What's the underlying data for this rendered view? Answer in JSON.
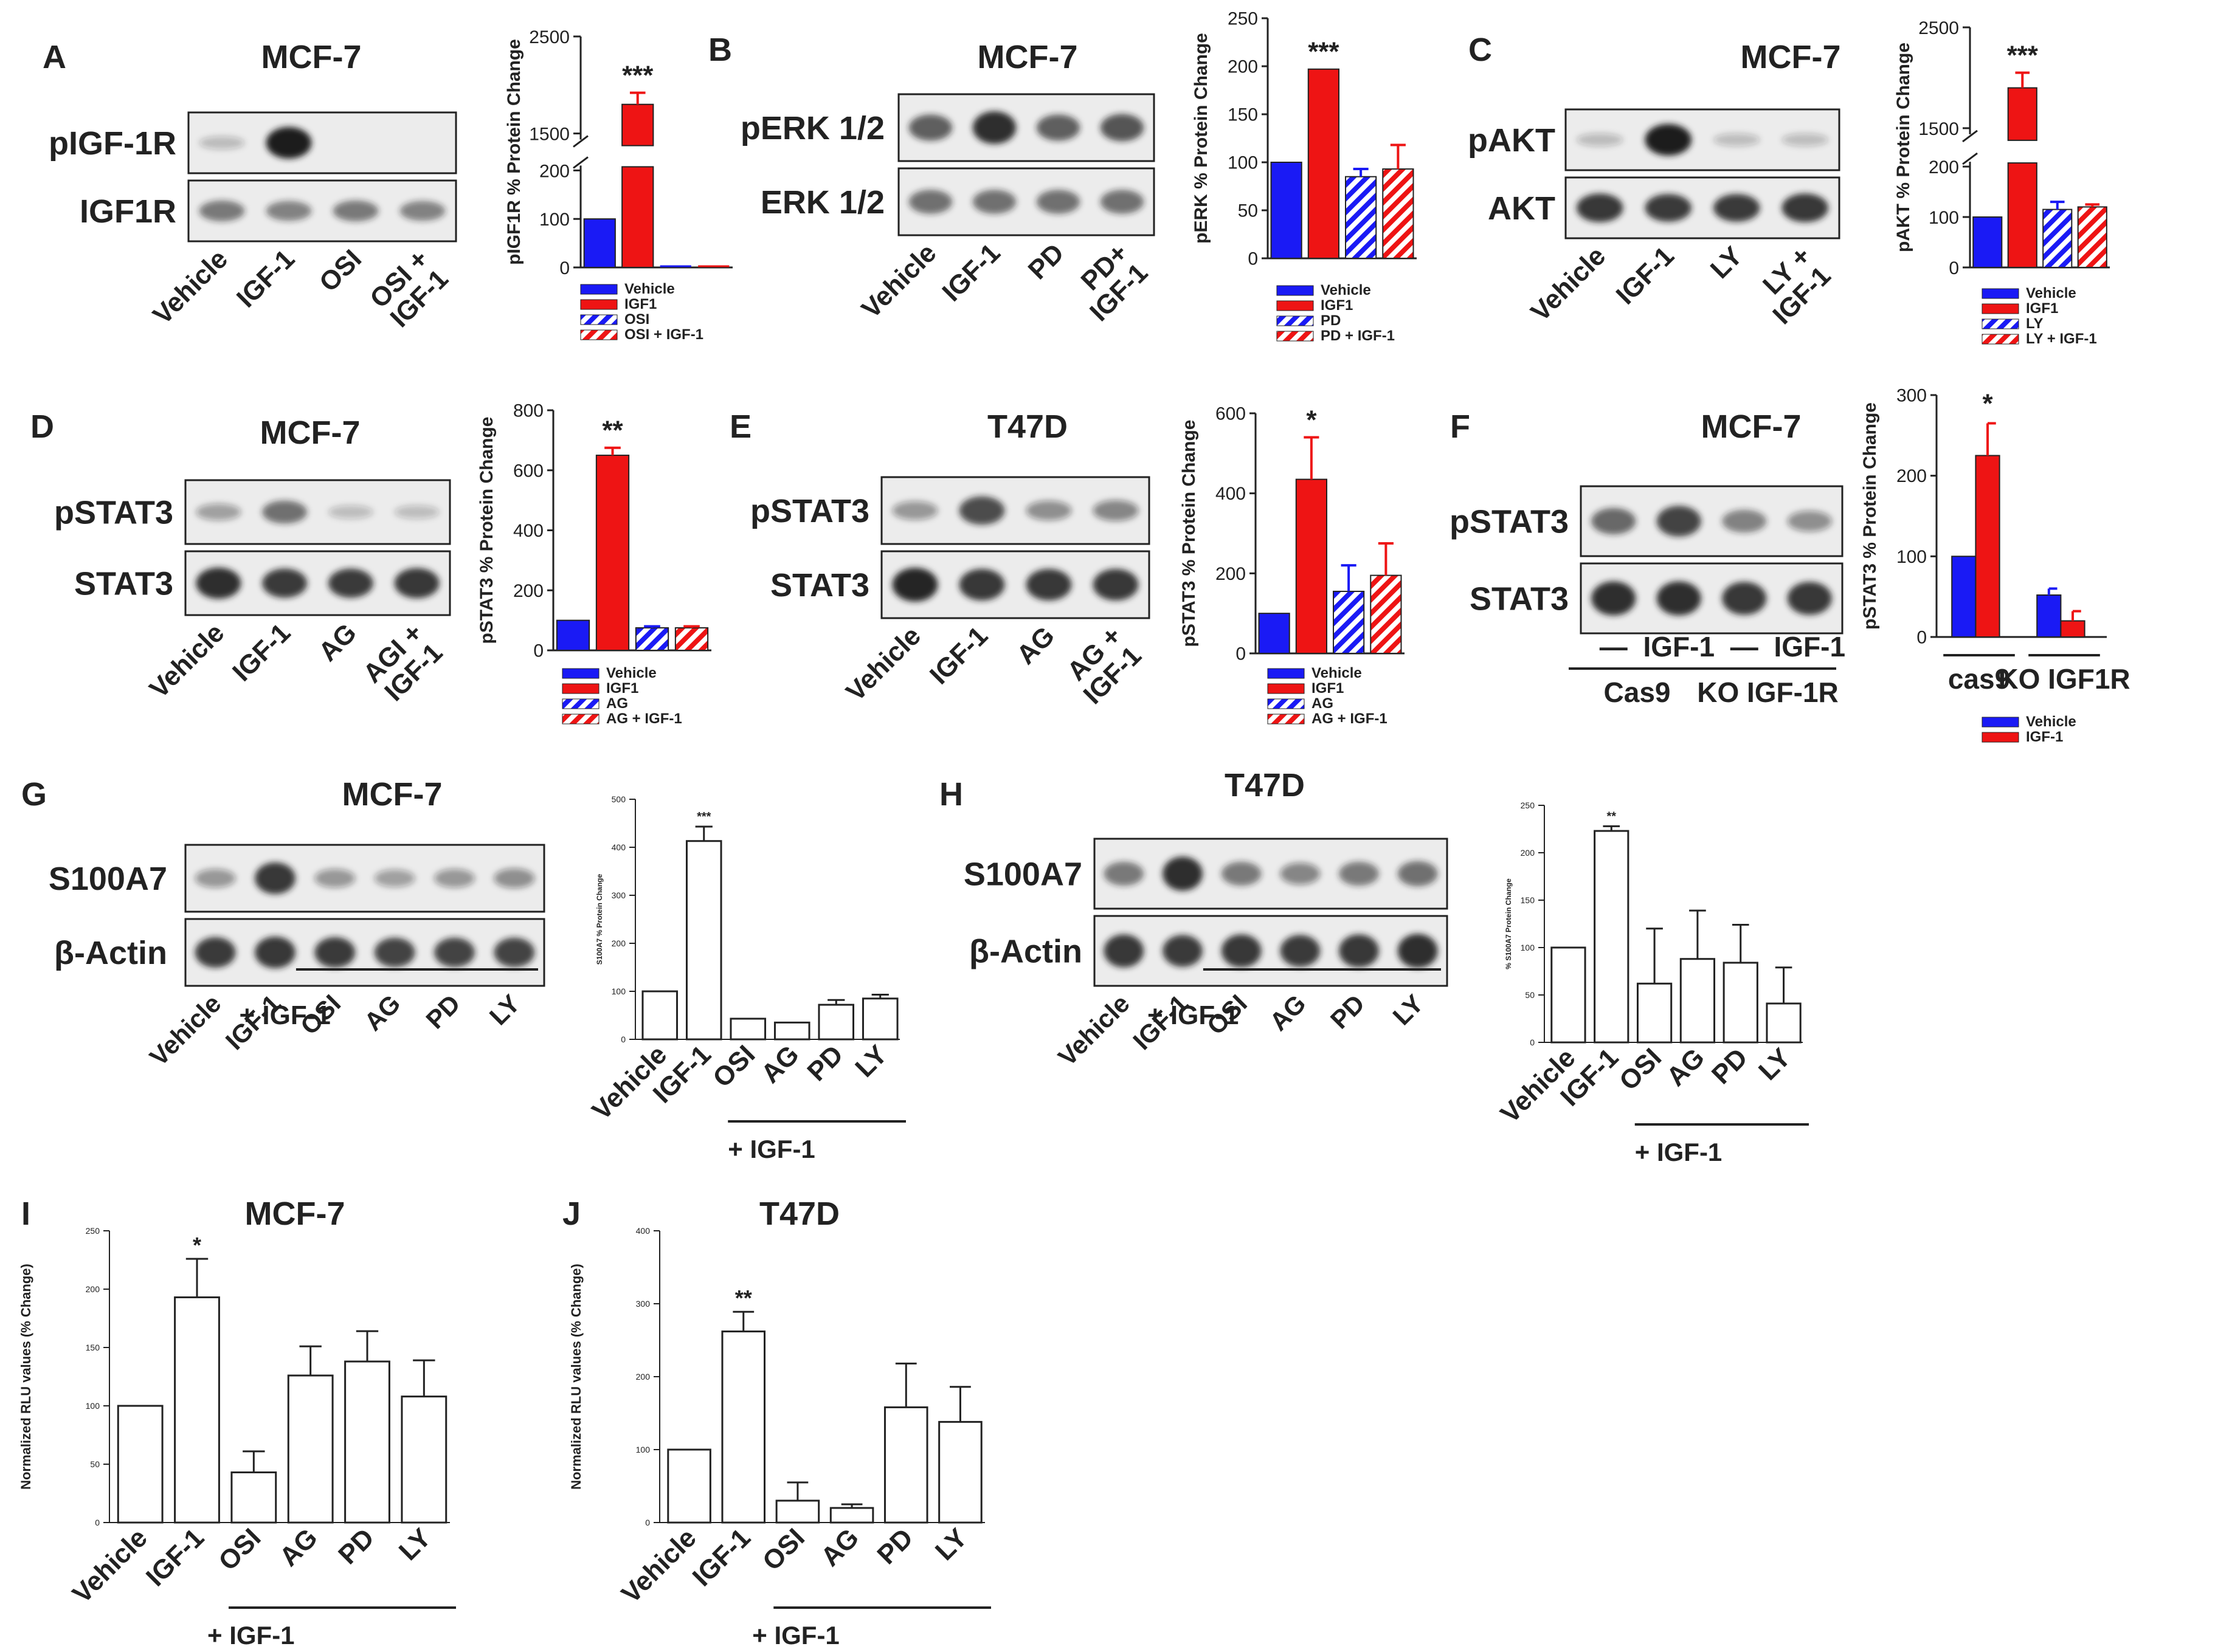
{
  "colors": {
    "blue": "#1a1af5",
    "red": "#ee1414",
    "outline": "#222222",
    "blot_bg": "#ececec",
    "band": "#1c1c1c"
  },
  "panels": [
    {
      "id": "A",
      "letter": "A",
      "title": "MCF-7",
      "blot": {
        "rows": [
          {
            "label": "pIGF-1R",
            "bands": [
              0.05,
              1.0,
              0,
              0
            ]
          },
          {
            "label": "IGF1R",
            "bands": [
              0.45,
              0.4,
              0.45,
              0.4
            ]
          }
        ],
        "lanes": [
          "Vehicle",
          "IGF-1",
          "OSI",
          "OSI +\nIGF-1"
        ]
      }
    },
    {
      "id": "B",
      "letter": "B",
      "title": "MCF-7",
      "blot": {
        "rows": [
          {
            "label": "pERK 1/2",
            "bands": [
              0.6,
              0.9,
              0.6,
              0.65
            ]
          },
          {
            "label": "ERK 1/2",
            "bands": [
              0.5,
              0.5,
              0.5,
              0.5
            ]
          }
        ],
        "lanes": [
          "Vehicle",
          "IGF-1",
          "PD",
          "PD+\nIGF-1"
        ]
      }
    },
    {
      "id": "C",
      "letter": "C",
      "title": "MCF-7",
      "blot": {
        "rows": [
          {
            "label": "pAKT",
            "bands": [
              0.05,
              1.0,
              0.04,
              0.04
            ]
          },
          {
            "label": "AKT",
            "bands": [
              0.85,
              0.8,
              0.8,
              0.85
            ]
          }
        ],
        "lanes": [
          "Vehicle",
          "IGF-1",
          "LY",
          "LY +\nIGF-1"
        ]
      }
    },
    {
      "id": "D",
      "letter": "D",
      "title": "MCF-7",
      "blot": {
        "rows": [
          {
            "label": "pSTAT3",
            "bands": [
              0.2,
              0.5,
              0.04,
              0.04
            ]
          },
          {
            "label": "STAT3",
            "bands": [
              0.9,
              0.8,
              0.8,
              0.85
            ]
          }
        ],
        "lanes": [
          "Vehicle",
          "IGF-1",
          "AG",
          "AGI +\nIGF-1"
        ]
      }
    },
    {
      "id": "E",
      "letter": "E",
      "title": "T47D",
      "blot": {
        "rows": [
          {
            "label": "pSTAT3",
            "bands": [
              0.25,
              0.7,
              0.3,
              0.35
            ]
          },
          {
            "label": "STAT3",
            "bands": [
              0.95,
              0.85,
              0.85,
              0.85
            ]
          }
        ],
        "lanes": [
          "Vehicle",
          "IGF-1",
          "AG",
          "AG +\nIGF-1"
        ]
      }
    },
    {
      "id": "F",
      "letter": "F",
      "title": "MCF-7",
      "blot": {
        "rows": [
          {
            "label": "pSTAT3",
            "bands": [
              0.55,
              0.75,
              0.4,
              0.3
            ]
          },
          {
            "label": "STAT3",
            "bands": [
              0.9,
              0.9,
              0.85,
              0.85
            ]
          }
        ],
        "lanes": [
          "—",
          "IGF-1",
          "—",
          "IGF-1"
        ],
        "groups": [
          "Cas9",
          "KO IGF-1R"
        ]
      }
    },
    {
      "id": "G",
      "letter": "G",
      "title": "MCF-7",
      "blot": {
        "rows": [
          {
            "label": "S100A7",
            "bands": [
              0.25,
              0.85,
              0.25,
              0.2,
              0.25,
              0.3
            ]
          },
          {
            "label": "β-Actin",
            "bands": [
              0.8,
              0.85,
              0.8,
              0.75,
              0.75,
              0.75
            ]
          }
        ],
        "lanes": [
          "Vehicle",
          "IGF-1",
          "OSI",
          "AG",
          "PD",
          "LY"
        ],
        "underline": "+ IGF-1"
      }
    },
    {
      "id": "H",
      "letter": "H",
      "title": "T47D",
      "blot": {
        "rows": [
          {
            "label": "S100A7",
            "bands": [
              0.45,
              0.9,
              0.45,
              0.35,
              0.45,
              0.5
            ]
          },
          {
            "label": "β-Actin",
            "bands": [
              0.85,
              0.8,
              0.85,
              0.8,
              0.85,
              0.9
            ]
          }
        ],
        "lanes": [
          "Vehicle",
          "IGF-1",
          "OSI",
          "AG",
          "PD",
          "LY"
        ],
        "underline": "+ IGF-1"
      }
    },
    {
      "id": "I",
      "letter": "I",
      "title": "MCF-7"
    },
    {
      "id": "J",
      "letter": "J",
      "title": "T47D"
    }
  ],
  "chart_data": [
    {
      "panel": "A",
      "type": "bar",
      "broken_axis": true,
      "categories": [
        "Vehicle",
        "IGF1",
        "OSI",
        "OSI + IGF-1"
      ],
      "values": [
        100,
        1800,
        0,
        0
      ],
      "errors": [
        0,
        120,
        0,
        0
      ],
      "ylabel": "pIGF1R % Protein Change",
      "yticks_lower": [
        "0",
        "100",
        "200"
      ],
      "yticks_upper": [
        "1500",
        "2500"
      ],
      "significance": [
        "",
        "***",
        "",
        ""
      ],
      "legend": [
        "Vehicle",
        "IGF1",
        "OSI",
        "OSI + IGF-1"
      ]
    },
    {
      "panel": "B",
      "type": "bar",
      "categories": [
        "Vehicle",
        "IGF1",
        "PD",
        "PD + IGF-1"
      ],
      "values": [
        100,
        197,
        85,
        93
      ],
      "errors": [
        0,
        0,
        8,
        25
      ],
      "ylabel": "pERK % Protein Change",
      "ylim": [
        0,
        250
      ],
      "yticks": [
        "0",
        "50",
        "100",
        "150",
        "200",
        "250"
      ],
      "significance": [
        "",
        "***",
        "",
        ""
      ],
      "legend": [
        "Vehicle",
        "IGF1",
        "PD",
        "PD + IGF-1"
      ]
    },
    {
      "panel": "C",
      "type": "bar",
      "broken_axis": true,
      "categories": [
        "Vehicle",
        "IGF1",
        "LY",
        "LY + IGF-1"
      ],
      "values": [
        100,
        1900,
        115,
        120
      ],
      "errors": [
        0,
        150,
        15,
        5
      ],
      "ylabel": "pAKT % Protein Change",
      "yticks_lower": [
        "0",
        "100",
        "200"
      ],
      "yticks_upper": [
        "1500",
        "2500"
      ],
      "significance": [
        "",
        "***",
        "",
        ""
      ],
      "legend": [
        "Vehicle",
        "IGF1",
        "LY",
        "LY + IGF-1"
      ]
    },
    {
      "panel": "D",
      "type": "bar",
      "categories": [
        "Vehicle",
        "IGF1",
        "AG",
        "AG + IGF-1"
      ],
      "values": [
        100,
        650,
        75,
        75
      ],
      "errors": [
        0,
        25,
        5,
        5
      ],
      "ylabel": "pSTAT3 % Protein Change",
      "ylim": [
        0,
        800
      ],
      "yticks": [
        "0",
        "200",
        "400",
        "600",
        "800"
      ],
      "significance": [
        "",
        "**",
        "",
        ""
      ],
      "legend": [
        "Vehicle",
        "IGF1",
        "AG",
        "AG + IGF-1"
      ]
    },
    {
      "panel": "E",
      "type": "bar",
      "categories": [
        "Vehicle",
        "IGF1",
        "AG",
        "AG + IGF-1"
      ],
      "values": [
        100,
        435,
        155,
        195
      ],
      "errors": [
        0,
        105,
        65,
        80
      ],
      "ylabel": "pSTAT3 % Protein Change",
      "ylim": [
        0,
        600
      ],
      "yticks": [
        "0",
        "200",
        "400",
        "600"
      ],
      "significance": [
        "",
        "*",
        "",
        ""
      ],
      "legend": [
        "Vehicle",
        "IGF1",
        "AG",
        "AG + IGF-1"
      ]
    },
    {
      "panel": "F",
      "type": "bar",
      "categories": [
        "cas9",
        "KO IGF1R"
      ],
      "series": [
        {
          "name": "Vehicle",
          "values": [
            100,
            52
          ],
          "errors": [
            0,
            8
          ]
        },
        {
          "name": "IGF-1",
          "values": [
            225,
            20
          ],
          "errors": [
            40,
            12
          ]
        }
      ],
      "ylabel": "pSTAT3 % Protein Change",
      "ylim": [
        0,
        300
      ],
      "yticks": [
        "0",
        "100",
        "200",
        "300"
      ],
      "significance": [
        "*",
        ""
      ],
      "legend": [
        "Vehicle",
        "IGF-1"
      ]
    },
    {
      "panel": "G",
      "type": "bar",
      "categories": [
        "Vehicle",
        "IGF-1",
        "OSI",
        "AG",
        "PD",
        "LY"
      ],
      "values": [
        100,
        413,
        43,
        35,
        72,
        85
      ],
      "errors": [
        0,
        30,
        0,
        0,
        10,
        8
      ],
      "ylabel": "S100A7 % Protein Change",
      "ylim": [
        0,
        500
      ],
      "yticks": [
        "0",
        "100",
        "200",
        "300",
        "400",
        "500"
      ],
      "significance": [
        "",
        "***",
        "",
        "",
        "",
        ""
      ],
      "group_label": "+ IGF-1"
    },
    {
      "panel": "H",
      "type": "bar",
      "categories": [
        "Vehicle",
        "IGF-1",
        "OSI",
        "AG",
        "PD",
        "LY"
      ],
      "values": [
        100,
        223,
        62,
        88,
        84,
        41
      ],
      "errors": [
        0,
        5,
        58,
        51,
        40,
        38
      ],
      "ylabel": "% S100A7 Protein Change",
      "ylim": [
        0,
        250
      ],
      "yticks": [
        "0",
        "50",
        "100",
        "150",
        "200",
        "250"
      ],
      "significance": [
        "",
        "**",
        "",
        "",
        "",
        ""
      ],
      "group_label": "+ IGF-1"
    },
    {
      "panel": "I",
      "type": "bar",
      "categories": [
        "Vehicle",
        "IGF-1",
        "OSI",
        "AG",
        "PD",
        "LY"
      ],
      "values": [
        100,
        193,
        43,
        126,
        138,
        108
      ],
      "errors": [
        0,
        33,
        18,
        25,
        26,
        31
      ],
      "ylabel": "Normalized RLU values (% Change)",
      "ylim": [
        0,
        250
      ],
      "yticks": [
        "0",
        "50",
        "100",
        "150",
        "200",
        "250"
      ],
      "significance": [
        "",
        "*",
        "",
        "",
        "",
        ""
      ],
      "group_label": "+ IGF-1"
    },
    {
      "panel": "J",
      "type": "bar",
      "categories": [
        "Vehicle",
        "IGF-1",
        "OSI",
        "AG",
        "PD",
        "LY"
      ],
      "values": [
        100,
        262,
        30,
        20,
        158,
        138
      ],
      "errors": [
        0,
        27,
        25,
        5,
        60,
        48
      ],
      "ylabel": "Normalized RLU values (% Change)",
      "ylim": [
        0,
        400
      ],
      "yticks": [
        "0",
        "100",
        "200",
        "300",
        "400"
      ],
      "significance": [
        "",
        "**",
        "",
        "",
        "",
        ""
      ],
      "group_label": "+ IGF-1"
    }
  ]
}
